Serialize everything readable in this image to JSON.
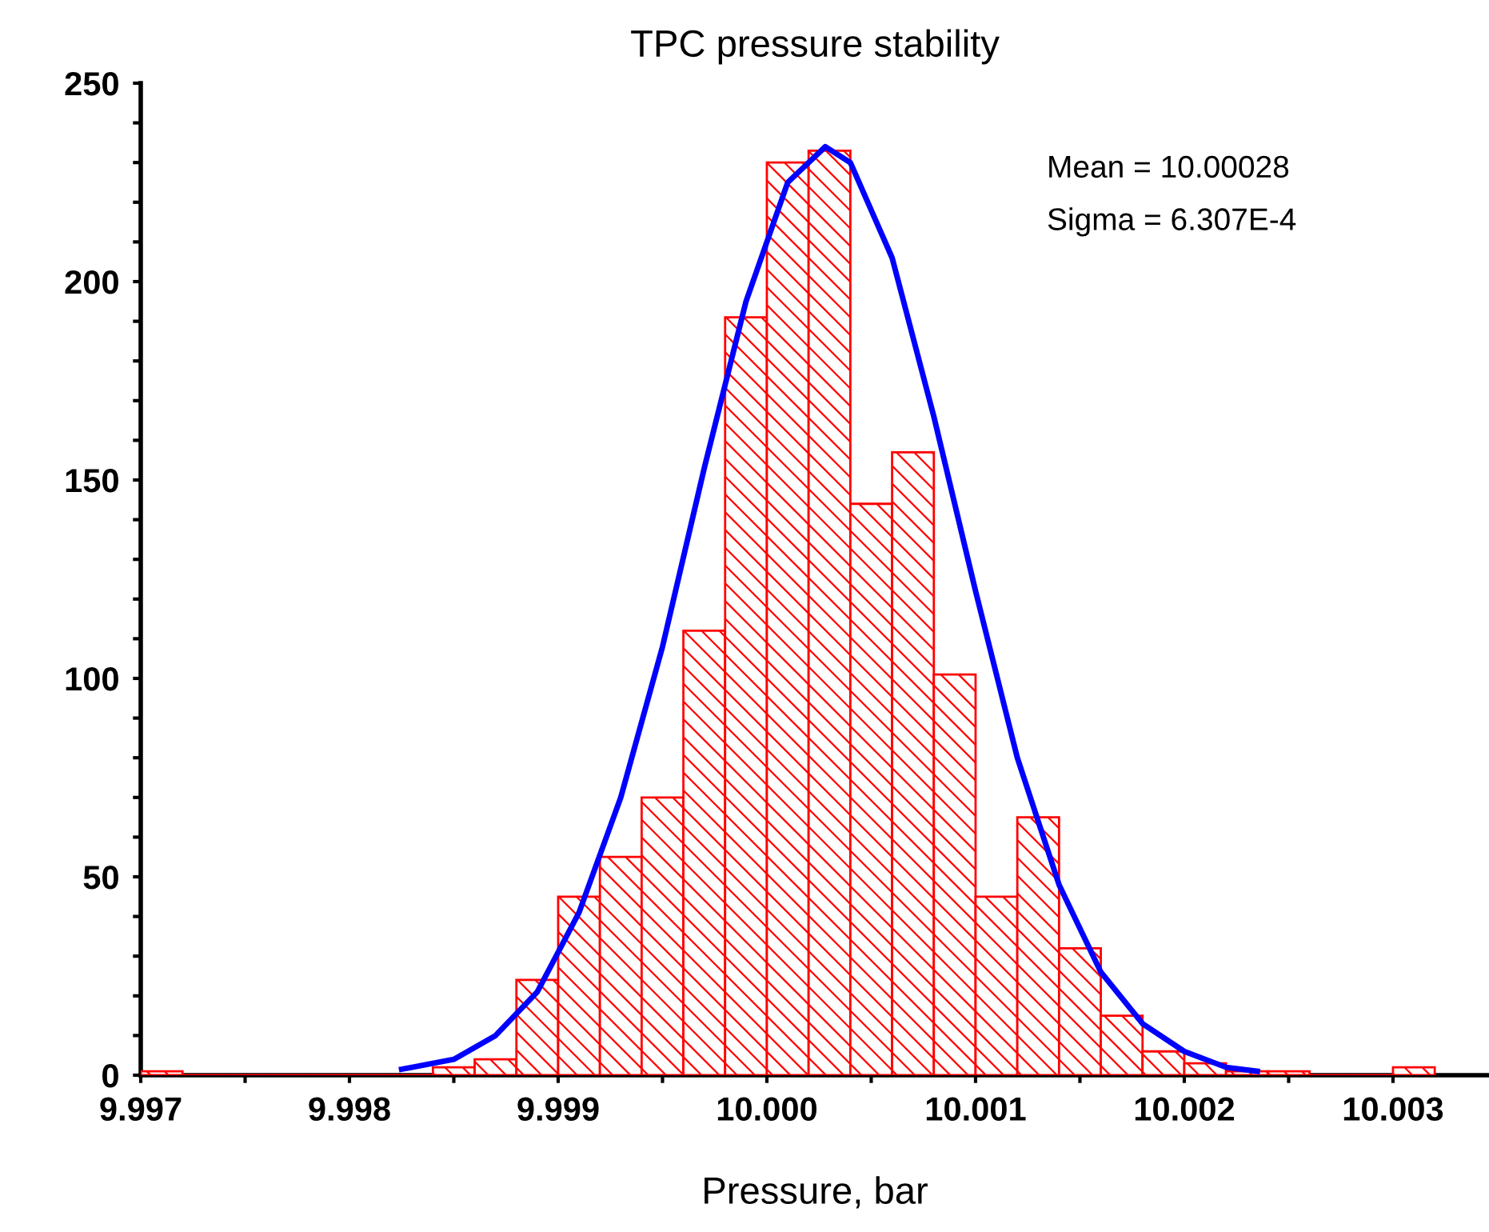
{
  "chart_data": {
    "type": "histogram",
    "title": "TPC pressure stability",
    "xlabel": "Pressure, bar",
    "bins": [
      9.997,
      9.9972,
      9.9974,
      9.9976,
      9.9978,
      9.998,
      9.9982,
      9.9984,
      9.9986,
      9.9988,
      9.999,
      9.9992,
      9.9994,
      9.9996,
      9.9998,
      10.0,
      10.0002,
      10.0004,
      10.0006,
      10.0008,
      10.001,
      10.0012,
      10.0014,
      10.0016,
      10.0018,
      10.002,
      10.0022,
      10.0024,
      10.0026,
      10.0028,
      10.003,
      10.0032
    ],
    "values": [
      1,
      0,
      0,
      0,
      0,
      0,
      0,
      2,
      4,
      24,
      45,
      55,
      70,
      112,
      191,
      230,
      233,
      144,
      157,
      101,
      45,
      65,
      32,
      15,
      6,
      3,
      1,
      1,
      0,
      0,
      2
    ],
    "color": "#ff0000",
    "series": [
      {
        "type": "line",
        "color": "#0000ff",
        "x": [
          9.99825,
          9.9983,
          9.9985,
          9.9987,
          9.9989,
          9.9991,
          9.9993,
          9.9995,
          9.9997,
          9.9999,
          10.0001,
          10.00028,
          10.0004,
          10.0006,
          10.0008,
          10.001,
          10.0012,
          10.0014,
          10.0016,
          10.0018,
          10.002,
          10.0022,
          10.00235
        ],
        "values": [
          1.5,
          2,
          4,
          10,
          21,
          41,
          70,
          108,
          153,
          195,
          225,
          234,
          230,
          206,
          166,
          122,
          80,
          48,
          26,
          13,
          6,
          2,
          1
        ]
      }
    ],
    "xlim": [
      9.997,
      10.00346
    ],
    "ylim": [
      0,
      250
    ],
    "xticks": [
      9.997,
      {
        "value": 9.9975,
        "label": null
      },
      9.998,
      {
        "value": 9.9985,
        "label": null
      },
      9.999,
      {
        "value": 9.9995,
        "label": null
      },
      {
        "value": 10.0,
        "label": "10.000"
      },
      {
        "value": 10.0005,
        "label": null
      },
      10.001,
      {
        "value": 10.0015,
        "label": null
      },
      10.002,
      {
        "value": 10.0025,
        "label": null
      },
      10.003
    ],
    "yticks": [
      0,
      {
        "value": 10,
        "label": null
      },
      {
        "value": 20,
        "label": null
      },
      {
        "value": 30,
        "label": null
      },
      {
        "value": 40,
        "label": null
      },
      50,
      {
        "value": 60,
        "label": null
      },
      {
        "value": 70,
        "label": null
      },
      {
        "value": 80,
        "label": null
      },
      {
        "value": 90,
        "label": null
      },
      100,
      {
        "value": 110,
        "label": null
      },
      {
        "value": 120,
        "label": null
      },
      {
        "value": 130,
        "label": null
      },
      {
        "value": 140,
        "label": null
      },
      150,
      {
        "value": 160,
        "label": null
      },
      {
        "value": 170,
        "label": null
      },
      {
        "value": 180,
        "label": null
      },
      {
        "value": 190,
        "label": null
      },
      200,
      {
        "value": 210,
        "label": null
      },
      {
        "value": 220,
        "label": null
      },
      {
        "value": 230,
        "label": null
      },
      {
        "value": 240,
        "label": null
      },
      250
    ],
    "annotations": [
      "Mean = 10.00028",
      "Sigma = 6.307E-4"
    ],
    "grid": false,
    "legend": false,
    "marker": "none",
    "line_style": "solid"
  }
}
